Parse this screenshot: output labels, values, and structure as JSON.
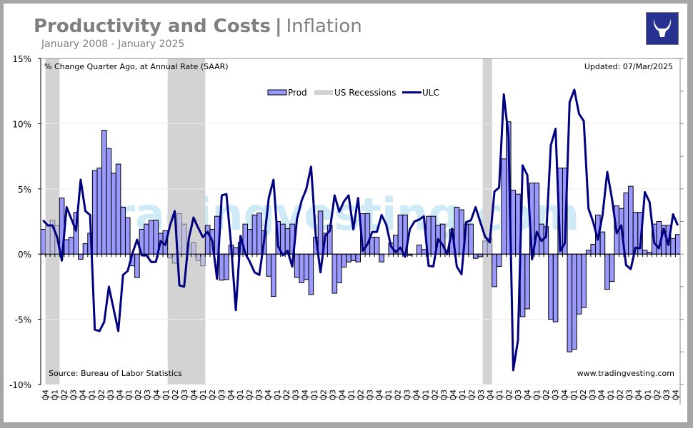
{
  "header": {
    "title_bold": "Productivity and Costs",
    "separator": "|",
    "title_light": "Inflation",
    "subtitle": "January 2008 - January 2025",
    "logo_icon": "bull-head-logo"
  },
  "chart_data": {
    "type": "bar+line",
    "units_note": "% Change Quarter Ago, at Annual Rate (SAAR)",
    "updated": "Updated: 07/Mar/2025",
    "source": "Source: Bureau of Labor Statistics",
    "website": "www.tradingvesting.com",
    "watermark": "tradingvesting.com",
    "ylim": [
      -10,
      15
    ],
    "yticks": [
      15,
      10,
      5,
      0,
      -5,
      -10
    ],
    "ytick_labels": [
      "15%",
      "10%",
      "5%",
      "0%",
      "-5%",
      "-10%"
    ],
    "grid": true,
    "legend_placement": "top-center",
    "x_tick_labels": [
      "Q4",
      "Q1",
      "Q2",
      "Q3",
      "Q4",
      "Q1",
      "Q2",
      "Q3",
      "Q4",
      "Q1",
      "Q2",
      "Q3",
      "Q4",
      "Q1",
      "Q2",
      "Q3",
      "Q4",
      "Q1",
      "Q2",
      "Q3",
      "Q4",
      "Q1",
      "Q2",
      "Q3",
      "Q4",
      "Q1",
      "Q2",
      "Q3",
      "Q4",
      "Q1",
      "Q2",
      "Q3",
      "Q4",
      "Q1",
      "Q2",
      "Q3",
      "Q4",
      "Q1",
      "Q2",
      "Q3",
      "Q4",
      "Q1",
      "Q2",
      "Q3",
      "Q4",
      "Q1",
      "Q2",
      "Q3",
      "Q4",
      "Q1",
      "Q2",
      "Q3",
      "Q4",
      "Q1",
      "Q2",
      "Q3",
      "Q4",
      "Q1",
      "Q2",
      "Q3",
      "Q4",
      "Q1",
      "Q2",
      "Q3",
      "Q4",
      "Q1",
      "Q2",
      "Q3",
      "Q4"
    ],
    "recession_spans_by_point": [
      [
        2,
        4
      ],
      [
        28,
        35
      ],
      [
        95,
        96
      ]
    ],
    "series": [
      {
        "name": "Prod",
        "type": "bar",
        "color": "#9999ff",
        "values": [
          1.9,
          2.2,
          2.6,
          2.2,
          4.3,
          1.1,
          1.3,
          3.2,
          -0.4,
          0.8,
          1.6,
          6.4,
          6.6,
          9.5,
          8.1,
          6.2,
          6.9,
          3.6,
          2.8,
          -0.9,
          -1.8,
          1.9,
          2.3,
          2.6,
          2.6,
          1.6,
          1.8,
          -0.3,
          -0.7,
          3.1,
          2.3,
          0.7,
          0.9,
          -0.5,
          -0.9,
          2.2,
          1.9,
          2.9,
          -2.0,
          -1.95,
          0.7,
          0.5,
          0.9,
          2.3,
          1.9,
          3.0,
          3.15,
          1.8,
          -1.7,
          -3.25,
          2.5,
          2.3,
          1.95,
          2.3,
          -1.8,
          -2.2,
          -1.95,
          -3.1,
          1.3,
          3.3,
          1.6,
          2.2,
          -3.0,
          -2.2,
          -1.0,
          -0.6,
          -0.5,
          -0.6,
          3.1,
          3.1,
          1.3,
          1.3,
          -0.6,
          0.0,
          0.85,
          1.45,
          3.0,
          3.0,
          -0.1,
          0.0,
          0.7,
          0.35,
          2.9,
          2.9,
          2.2,
          2.3,
          0.2,
          1.9,
          3.6,
          3.4,
          2.3,
          2.3,
          -0.33,
          -0.2,
          1.0,
          1.2,
          -2.5,
          -0.95,
          7.3,
          10.15,
          4.9,
          4.6,
          -4.8,
          -4.2,
          5.45,
          5.45,
          2.3,
          2.1,
          -5.0,
          -5.2,
          6.6,
          6.6,
          -7.5,
          -7.3,
          -4.6,
          -4.1,
          0.3,
          0.75,
          3.0,
          1.7,
          -2.7,
          -2.1,
          3.7,
          3.5,
          4.7,
          5.2,
          3.2,
          3.2,
          0.3,
          0.15,
          2.3,
          2.5,
          2.2,
          2.2,
          1.2,
          1.5
        ]
      },
      {
        "name": "US Recessions",
        "type": "band",
        "color": "#d3d3d3"
      },
      {
        "name": "ULC",
        "type": "line",
        "color": "#000080",
        "values": [
          2.6,
          2.2,
          2.2,
          1.3,
          -0.5,
          3.6,
          2.7,
          1.8,
          5.7,
          3.3,
          3.0,
          -5.8,
          -5.9,
          -5.2,
          -2.5,
          -4.2,
          -5.9,
          -1.6,
          -1.3,
          0.05,
          1.1,
          -0.1,
          -0.1,
          -0.6,
          -0.6,
          1.0,
          0.7,
          2.2,
          3.3,
          -2.4,
          -2.5,
          1.2,
          2.8,
          2.0,
          1.3,
          1.7,
          1.0,
          -1.9,
          4.5,
          4.6,
          0.7,
          -4.3,
          1.4,
          0.05,
          -0.6,
          -1.4,
          -1.6,
          1.0,
          4.3,
          5.7,
          0.6,
          -0.1,
          0.25,
          -0.95,
          2.7,
          4.1,
          5.0,
          6.7,
          1.4,
          -1.4,
          1.4,
          1.8,
          4.5,
          3.25,
          4.05,
          4.5,
          1.9,
          4.3,
          0.25,
          0.75,
          1.7,
          1.7,
          3.0,
          2.25,
          0.6,
          0.15,
          0.5,
          -0.2,
          1.9,
          2.5,
          2.65,
          2.9,
          -0.9,
          -0.95,
          1.15,
          0.7,
          0.0,
          1.95,
          -0.95,
          -1.55,
          2.45,
          2.6,
          3.6,
          2.45,
          1.35,
          0.9,
          4.8,
          5.1,
          12.25,
          9.0,
          -8.9,
          -6.6,
          6.8,
          6.05,
          -0.4,
          1.7,
          1.0,
          1.35,
          8.35,
          9.6,
          0.25,
          0.85,
          11.65,
          12.6,
          10.75,
          10.2,
          3.5,
          2.45,
          1.1,
          3.0,
          6.3,
          4.25,
          1.6,
          2.2,
          -0.85,
          -1.15,
          0.5,
          0.45,
          4.75,
          4.0,
          0.85,
          0.45,
          1.95,
          0.7,
          3.05,
          2.2
        ]
      }
    ]
  }
}
